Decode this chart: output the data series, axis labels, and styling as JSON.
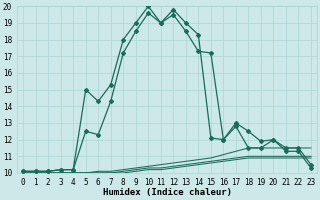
{
  "xlabel": "Humidex (Indice chaleur)",
  "xlim": [
    -0.5,
    23.5
  ],
  "ylim": [
    10,
    20
  ],
  "xticks": [
    0,
    1,
    2,
    3,
    4,
    5,
    6,
    7,
    8,
    9,
    10,
    11,
    12,
    13,
    14,
    15,
    16,
    17,
    18,
    19,
    20,
    21,
    22,
    23
  ],
  "yticks": [
    10,
    11,
    12,
    13,
    14,
    15,
    16,
    17,
    18,
    19,
    20
  ],
  "bg_color": "#cce8e8",
  "grid_color": "#aad4d4",
  "line_color": "#1a6b5a",
  "line1_x": [
    0,
    1,
    2,
    3,
    4,
    5,
    6,
    7,
    8,
    9,
    10,
    11,
    12,
    13,
    14,
    15,
    16,
    17,
    18,
    19,
    20,
    21,
    22,
    23
  ],
  "line1_y": [
    10.1,
    10.1,
    10.1,
    10.2,
    10.2,
    15.0,
    14.3,
    15.3,
    18.0,
    19.0,
    20.0,
    19.0,
    19.8,
    19.0,
    18.3,
    12.1,
    12.0,
    13.0,
    12.5,
    11.9,
    12.0,
    11.3,
    11.3,
    10.3
  ],
  "line2_x": [
    0,
    1,
    2,
    3,
    4,
    5,
    6,
    7,
    8,
    9,
    10,
    11,
    12,
    13,
    14,
    15,
    16,
    17,
    18,
    19,
    20,
    21,
    22,
    23
  ],
  "line2_y": [
    10.1,
    10.1,
    10.1,
    10.2,
    10.2,
    12.5,
    12.3,
    14.3,
    17.2,
    18.5,
    19.6,
    19.0,
    19.5,
    18.5,
    17.3,
    17.2,
    12.0,
    12.8,
    11.5,
    11.5,
    12.0,
    11.5,
    11.5,
    10.5
  ],
  "line3_x": [
    0,
    1,
    2,
    3,
    4,
    5,
    6,
    7,
    8,
    9,
    10,
    11,
    12,
    13,
    14,
    15,
    16,
    17,
    18,
    19,
    20,
    21,
    22,
    23
  ],
  "line3_y": [
    10.0,
    10.0,
    10.0,
    10.0,
    10.0,
    10.0,
    10.1,
    10.1,
    10.2,
    10.3,
    10.4,
    10.5,
    10.6,
    10.7,
    10.8,
    10.9,
    11.1,
    11.3,
    11.5,
    11.5,
    11.5,
    11.5,
    11.5,
    11.5
  ],
  "line4_x": [
    0,
    1,
    2,
    3,
    4,
    5,
    6,
    7,
    8,
    9,
    10,
    11,
    12,
    13,
    14,
    15,
    16,
    17,
    18,
    19,
    20,
    21,
    22,
    23
  ],
  "line4_y": [
    10.0,
    10.0,
    10.0,
    10.0,
    10.0,
    10.0,
    10.0,
    10.0,
    10.1,
    10.2,
    10.3,
    10.3,
    10.4,
    10.5,
    10.6,
    10.7,
    10.8,
    10.9,
    11.0,
    11.0,
    11.0,
    11.0,
    11.0,
    11.0
  ],
  "line5_x": [
    0,
    1,
    2,
    3,
    4,
    5,
    6,
    7,
    8,
    9,
    10,
    11,
    12,
    13,
    14,
    15,
    16,
    17,
    18,
    19,
    20,
    21,
    22,
    23
  ],
  "line5_y": [
    10.0,
    10.0,
    10.0,
    10.0,
    10.0,
    10.0,
    10.0,
    10.0,
    10.0,
    10.1,
    10.2,
    10.2,
    10.3,
    10.4,
    10.5,
    10.6,
    10.7,
    10.8,
    10.9,
    10.9,
    10.9,
    10.9,
    10.9,
    10.9
  ],
  "marker": "D",
  "markersize": 2.0,
  "linewidth": 0.9,
  "xlabel_fontsize": 6.5,
  "tick_fontsize": 5.5
}
